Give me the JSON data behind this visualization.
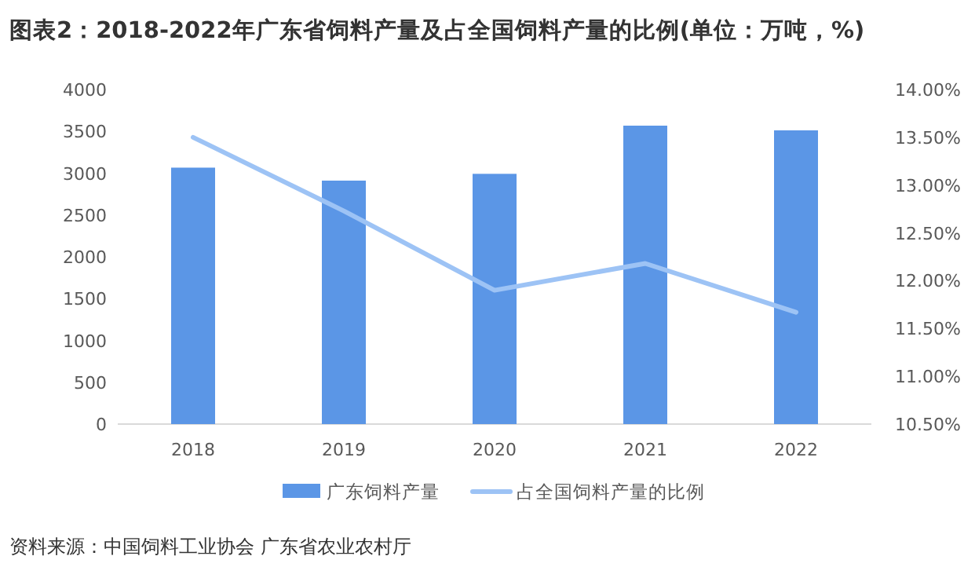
{
  "chart_data": {
    "type": "bar",
    "title": "图表2：2018-2022年广东省饲料产量及占全国饲料产量的比例(单位：万吨，%)",
    "categories": [
      "2018",
      "2019",
      "2020",
      "2021",
      "2022"
    ],
    "series": [
      {
        "name": "广东饲料产量",
        "color": "#5b96e6",
        "values": [
          3066,
          2911,
          2992,
          3568,
          3512
        ]
      },
      {
        "name": "占全国饲料产量的比例",
        "type": "line",
        "axis": "y2",
        "color": "#9dc3f5",
        "values": [
          13.5,
          12.73,
          11.9,
          12.18,
          11.67
        ]
      }
    ],
    "ylim": [
      0,
      4000
    ],
    "yticks": [
      0,
      500,
      1000,
      1500,
      2000,
      2500,
      3000,
      3500,
      4000
    ],
    "y2lim": [
      10.5,
      14
    ],
    "y2ticks": [
      {
        "value": 10.5,
        "label": "10.50%"
      },
      {
        "value": 11,
        "label": "11.00%"
      },
      {
        "value": 11.5,
        "label": "11.50%"
      },
      {
        "value": 12,
        "label": "12.00%"
      },
      {
        "value": 12.5,
        "label": "12.50%"
      },
      {
        "value": 13,
        "label": "13.00%"
      },
      {
        "value": 13.5,
        "label": "13.50%"
      },
      {
        "value": 14,
        "label": "14.00%"
      }
    ],
    "legend": "bottom",
    "annotations": [
      "资料来源：中国饲料工业协会 广东省农业农村厅"
    ]
  }
}
